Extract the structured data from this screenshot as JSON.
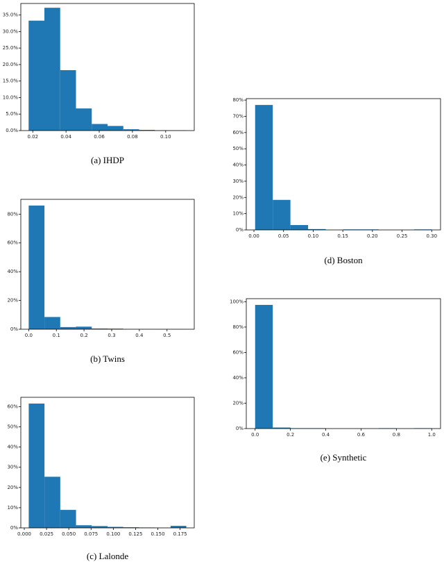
{
  "chart_data": [
    {
      "type": "histogram",
      "caption": "(a) IHDP",
      "color": "#1f77b4",
      "bins": [
        0.0175,
        0.027,
        0.0365,
        0.046,
        0.0555,
        0.065,
        0.0745,
        0.084,
        0.0935,
        0.103,
        0.1125
      ],
      "values": [
        33.3,
        37.2,
        18.3,
        6.7,
        2.0,
        1.4,
        0.4,
        0.2,
        0.1,
        0.1
      ],
      "xlim": [
        0.0128,
        0.1172
      ],
      "xticks": [
        0.02,
        0.04,
        0.06,
        0.08,
        {
          "value": 0.1,
          "label": "0.10"
        }
      ],
      "ylim": [
        0,
        38.5
      ],
      "yticks": [
        {
          "value": 0,
          "label": "0.0%"
        },
        {
          "value": 5,
          "label": "5.0%"
        },
        {
          "value": 10,
          "label": "10.0%"
        },
        {
          "value": 15,
          "label": "15.0%"
        },
        {
          "value": 20,
          "label": "20.0%"
        },
        {
          "value": 25,
          "label": "25.0%"
        },
        {
          "value": 30,
          "label": "30.0%"
        },
        {
          "value": 35,
          "label": "35.0%"
        }
      ]
    },
    {
      "type": "histogram",
      "caption": "(b) Twins",
      "color": "#1f77b4",
      "bins": [
        0,
        0.057,
        0.114,
        0.171,
        0.228,
        0.285,
        0.342,
        0.399,
        0.456,
        0.513,
        0.57
      ],
      "values": [
        86,
        8.5,
        1.5,
        1.8,
        0.5,
        0.4,
        0.1,
        0.1,
        0.05,
        0.05
      ],
      "xlim": [
        -0.0285,
        0.5985
      ],
      "xticks": [
        {
          "value": 0,
          "label": "0.0"
        },
        0.1,
        0.2,
        0.3,
        0.4,
        0.5
      ],
      "ylim": [
        0,
        90.3
      ],
      "yticks": [
        {
          "value": 0,
          "label": "0%"
        },
        {
          "value": 20,
          "label": "20%"
        },
        {
          "value": 40,
          "label": "40%"
        },
        {
          "value": 60,
          "label": "60%"
        },
        {
          "value": 80,
          "label": "80%"
        }
      ]
    },
    {
      "type": "histogram",
      "caption": "(c) Lalonde",
      "color": "#1f77b4",
      "bins": [
        0.005,
        0.0227,
        0.0404,
        0.0581,
        0.0758,
        0.0935,
        0.1112,
        0.1289,
        0.1466,
        0.1643,
        0.182
      ],
      "values": [
        61.5,
        25.3,
        8.9,
        1.3,
        0.9,
        0.5,
        0.3,
        0.2,
        0.1,
        1.0
      ],
      "xlim": [
        -0.0039,
        0.1909
      ],
      "xticks": [
        {
          "value": 0,
          "label": "0.000"
        },
        {
          "value": 0.025,
          "label": "0.025"
        },
        {
          "value": 0.05,
          "label": "0.050"
        },
        {
          "value": 0.075,
          "label": "0.075"
        },
        {
          "value": 0.1,
          "label": "0.100"
        },
        {
          "value": 0.125,
          "label": "0.125"
        },
        {
          "value": 0.15,
          "label": "0.150"
        },
        {
          "value": 0.175,
          "label": "0.175"
        }
      ],
      "ylim": [
        0,
        64.6
      ],
      "yticks": [
        {
          "value": 0,
          "label": "0%"
        },
        {
          "value": 10,
          "label": "10%"
        },
        {
          "value": 20,
          "label": "20%"
        },
        {
          "value": 30,
          "label": "30%"
        },
        {
          "value": 40,
          "label": "40%"
        },
        {
          "value": 50,
          "label": "50%"
        },
        {
          "value": 60,
          "label": "60%"
        }
      ]
    },
    {
      "type": "histogram",
      "caption": "(d) Boston",
      "color": "#1f77b4",
      "bins": [
        0.002,
        0.0318,
        0.0616,
        0.0914,
        0.1212,
        0.151,
        0.1808,
        0.2106,
        0.2404,
        0.2702,
        0.3
      ],
      "values": [
        77,
        18.5,
        3.0,
        0.5,
        0,
        0.3,
        0.3,
        0,
        0,
        0.3
      ],
      "xlim": [
        -0.0129,
        0.3149
      ],
      "xticks": [
        {
          "value": 0,
          "label": "0.00"
        },
        {
          "value": 0.05,
          "label": "0.05"
        },
        {
          "value": 0.1,
          "label": "0.10"
        },
        {
          "value": 0.15,
          "label": "0.15"
        },
        {
          "value": 0.2,
          "label": "0.20"
        },
        {
          "value": 0.25,
          "label": "0.25"
        },
        {
          "value": 0.3,
          "label": "0.30"
        }
      ],
      "ylim": [
        0,
        80.9
      ],
      "yticks": [
        {
          "value": 0,
          "label": "0%"
        },
        {
          "value": 10,
          "label": "10%"
        },
        {
          "value": 20,
          "label": "20%"
        },
        {
          "value": 30,
          "label": "30%"
        },
        {
          "value": 40,
          "label": "40%"
        },
        {
          "value": 50,
          "label": "50%"
        },
        {
          "value": 60,
          "label": "60%"
        },
        {
          "value": 70,
          "label": "70%"
        },
        {
          "value": 80,
          "label": "80%"
        }
      ]
    },
    {
      "type": "histogram",
      "caption": "(e) Synthetic",
      "color": "#1f77b4",
      "bins": [
        0,
        0.1,
        0.2,
        0.3,
        0.4,
        0.5,
        0.6,
        0.7,
        0.8,
        0.9,
        1.0
      ],
      "values": [
        97.5,
        0.8,
        0.3,
        0.3,
        0,
        0,
        0,
        0.3,
        0,
        0.3
      ],
      "xlim": [
        -0.05,
        1.05
      ],
      "xticks": [
        {
          "value": 0,
          "label": "0.0"
        },
        0.2,
        0.4,
        0.6,
        0.8,
        {
          "value": 1,
          "label": "1.0"
        }
      ],
      "ylim": [
        0,
        102.4
      ],
      "yticks": [
        {
          "value": 0,
          "label": "0%"
        },
        {
          "value": 20,
          "label": "20%"
        },
        {
          "value": 40,
          "label": "40%"
        },
        {
          "value": 60,
          "label": "60%"
        },
        {
          "value": 80,
          "label": "80%"
        },
        {
          "value": 100,
          "label": "100%"
        }
      ]
    }
  ]
}
